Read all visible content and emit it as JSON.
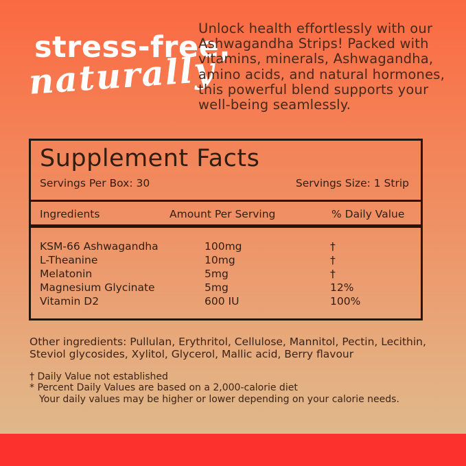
{
  "colors": {
    "background_top": "#fb6941",
    "background_bottom": "#ddbb8e",
    "footer_bar": "#fc312e",
    "headline_text": "#ffffff",
    "body_text": "#46291b",
    "box_border": "#241609"
  },
  "hero": {
    "headline_line1": "stress-free,",
    "headline_line2": "naturally",
    "description_lines": [
      "Unlock health effortlessly with our",
      "Ashwagandha Strips! Packed with",
      "vitamins, minerals, Ashwagandha,",
      "amino acids, and natural hormones,",
      "this powerful blend supports your",
      "well-being seamlessly."
    ]
  },
  "supplement_facts": {
    "title": "Supplement Facts",
    "servings_per_box": "Servings Per Box: 30",
    "serving_size": "Servings Size: 1 Strip",
    "columns": [
      "Ingredients",
      "Amount Per Serving",
      "% Daily Value"
    ],
    "rows": [
      {
        "ingredient": "KSM-66 Ashwagandha",
        "amount": "100mg",
        "daily_value": "†"
      },
      {
        "ingredient": "L-Theanine",
        "amount": "10mg",
        "daily_value": "†"
      },
      {
        "ingredient": "Melatonin",
        "amount": "5mg",
        "daily_value": "†"
      },
      {
        "ingredient": "Magnesium Glycinate",
        "amount": "5mg",
        "daily_value": "12%"
      },
      {
        "ingredient": "Vitamin D2",
        "amount": "600 IU",
        "daily_value": "100%"
      }
    ]
  },
  "other_ingredients_lines": [
    "Other ingredients: Pullulan, Erythritol, Cellulose, Mannitol, Pectin, Lecithin,",
    "Steviol glycosides, Xylitol, Glycerol, Mallic acid, Berry flavour"
  ],
  "footnotes": {
    "dagger_note": "† Daily Value not established",
    "asterisk_note": "* Percent Daily Values are based on a 2,000-calorie diet",
    "asterisk_note_line2": "Your daily values may be higher or lower depending on your calorie needs."
  }
}
